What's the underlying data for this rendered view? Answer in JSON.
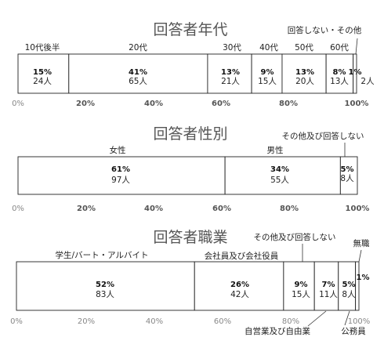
{
  "chart_data": [
    {
      "type": "bar",
      "orientation": "horizontal-stacked-100",
      "title": "回答者年代",
      "xlim": [
        0,
        100
      ],
      "ticks": [
        "0%",
        "20%",
        "40%",
        "60%",
        "80%",
        "100%"
      ],
      "segments": [
        {
          "label": "10代後半",
          "percent": 15,
          "pct_label": "15%",
          "count_label": "24人"
        },
        {
          "label": "20代",
          "percent": 41,
          "pct_label": "41%",
          "count_label": "65人"
        },
        {
          "label": "30代",
          "percent": 13,
          "pct_label": "13%",
          "count_label": "21人"
        },
        {
          "label": "40代",
          "percent": 9,
          "pct_label": "9%",
          "count_label": "15人"
        },
        {
          "label": "50代",
          "percent": 13,
          "pct_label": "13%",
          "count_label": "20人"
        },
        {
          "label": "60代",
          "percent": 8,
          "pct_label": "8%",
          "count_label": "13人"
        },
        {
          "label": "回答しない・その他",
          "percent": 1,
          "pct_label": "1%",
          "count_label": "2人"
        }
      ]
    },
    {
      "type": "bar",
      "orientation": "horizontal-stacked-100",
      "title": "回答者性別",
      "xlim": [
        0,
        100
      ],
      "ticks": [
        "0%",
        "20%",
        "40%",
        "60%",
        "80%",
        "100%"
      ],
      "segments": [
        {
          "label": "女性",
          "percent": 61,
          "pct_label": "61%",
          "count_label": "97人"
        },
        {
          "label": "男性",
          "percent": 34,
          "pct_label": "34%",
          "count_label": "55人"
        },
        {
          "label": "その他及び回答しない",
          "percent": 5,
          "pct_label": "5%",
          "count_label": "8人"
        }
      ]
    },
    {
      "type": "bar",
      "orientation": "horizontal-stacked-100",
      "title": "回答者職業",
      "xlim": [
        0,
        100
      ],
      "ticks": [
        "0%",
        "20%",
        "40%",
        "60%",
        "80%",
        "100%"
      ],
      "segments": [
        {
          "label": "学生/バート・アルバイト",
          "percent": 52,
          "pct_label": "52%",
          "count_label": "83人"
        },
        {
          "label": "会社員及び会社役員",
          "percent": 26,
          "pct_label": "26%",
          "count_label": "42人"
        },
        {
          "label": "その他及び回答しない",
          "percent": 9,
          "pct_label": "9%",
          "count_label": "15人"
        },
        {
          "label": "自営業及び自由業",
          "percent": 7,
          "pct_label": "7%",
          "count_label": "11人"
        },
        {
          "label": "公務員",
          "percent": 5,
          "pct_label": "5%",
          "count_label": "8人"
        },
        {
          "label": "無職",
          "percent": 1,
          "pct_label": "1%",
          "count_label": ""
        }
      ]
    }
  ]
}
